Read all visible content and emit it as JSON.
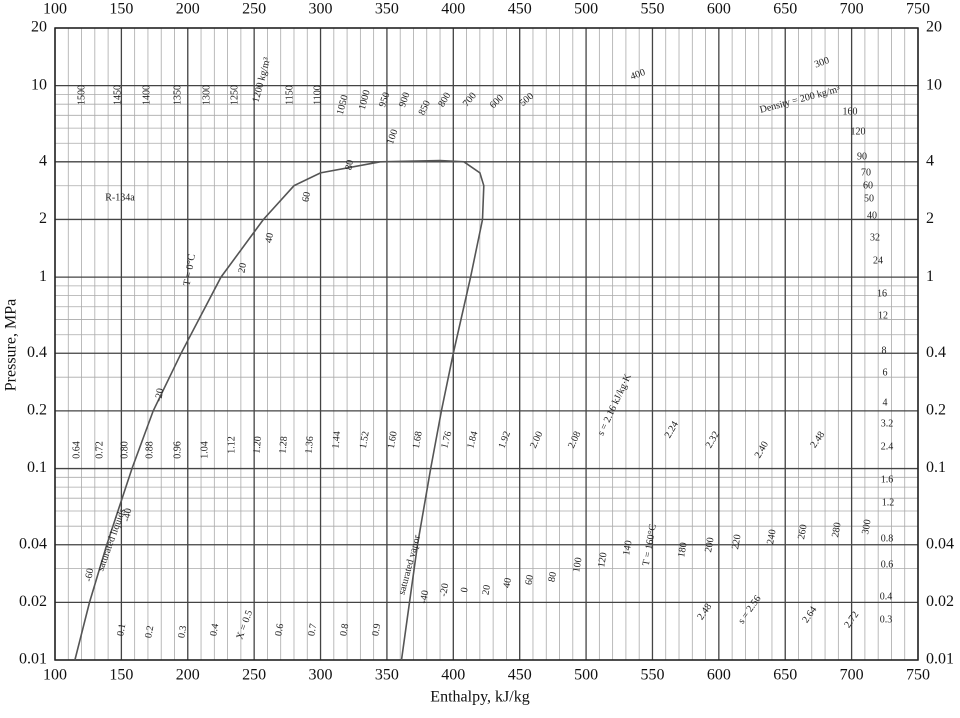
{
  "chart_data": {
    "type": "line",
    "xlabel": "Enthalpy, kJ/kg",
    "ylabel": "Pressure, MPa",
    "xlim": [
      100,
      750
    ],
    "ylim": [
      0.01,
      20
    ],
    "log_y": true,
    "grid": true,
    "xticks": [
      100,
      150,
      200,
      250,
      300,
      350,
      400,
      450,
      500,
      550,
      600,
      650,
      700,
      750
    ],
    "yticks": [
      0.01,
      0.02,
      0.04,
      0.1,
      0.2,
      0.4,
      1,
      2,
      4,
      10,
      20
    ],
    "series": [
      {
        "name": "saturated liquid",
        "color": "#555555",
        "x": [
          115,
          126,
          139,
          158,
          174,
          195,
          225,
          257,
          280,
          300,
          345,
          390
        ],
        "values": [
          0.01,
          0.02,
          0.04,
          0.1,
          0.2,
          0.4,
          1,
          2,
          3,
          3.5,
          4,
          4.06
        ]
      },
      {
        "name": "saturated vapor",
        "color": "#555555",
        "x": [
          361,
          367,
          373,
          383,
          391,
          400,
          413,
          422,
          423,
          420,
          408,
          390
        ],
        "values": [
          0.01,
          0.02,
          0.04,
          0.1,
          0.2,
          0.4,
          1,
          2,
          3,
          3.5,
          4,
          4.06
        ]
      }
    ],
    "annotations": {
      "density": [
        "1500",
        "1450",
        "1400",
        "1350",
        "1300",
        "1250",
        "1200 kg/m³",
        "1150",
        "1100",
        "1050",
        "1000",
        "950",
        "900",
        "850",
        "800",
        "700",
        "600",
        "500",
        "400",
        "300",
        "Density = 200 kg/m³",
        "160",
        "120",
        "90",
        "70",
        "60",
        "50",
        "40",
        "32",
        "24",
        "16",
        "12",
        "8",
        "6",
        "4",
        "3.2",
        "2.4",
        "1.6",
        "1.2",
        "0.8",
        "0.6",
        "0.4",
        "0.3"
      ],
      "entropy": [
        "0.64",
        "0.72",
        "0.80",
        "0.88",
        "0.96",
        "1.04",
        "1.12",
        "1.20",
        "1.28",
        "1.36",
        "1.44",
        "1.52",
        "1.60",
        "1.68",
        "1.76",
        "1.84",
        "1.92",
        "2.00",
        "2.08",
        "s = 2.16 kJ/kg·K",
        "2.24",
        "2.32",
        "2.40",
        "2.48",
        "2.48",
        "s = 2.56",
        "2.64",
        "2.72"
      ],
      "temperature": [
        "-60",
        "-40",
        "-20",
        "T = 0°C",
        "20",
        "40",
        "60",
        "80",
        "100",
        "-40",
        "-20",
        "0",
        "20",
        "40",
        "60",
        "80",
        "100",
        "120",
        "140",
        "T = 160°C",
        "180",
        "200",
        "220",
        "240",
        "260",
        "280",
        "300"
      ],
      "quality": [
        "0.1",
        "0.2",
        "0.3",
        "0.4",
        "X = 0.5",
        "0.6",
        "0.7",
        "0.8",
        "0.9"
      ],
      "notes": [
        "R-134a",
        "saturated liquids",
        "saturated vapor"
      ]
    }
  }
}
